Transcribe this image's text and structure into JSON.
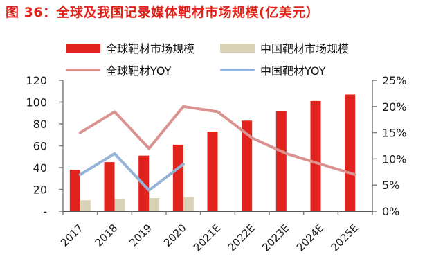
{
  "title": "图 36：全球及我国记录媒体靶材市场规模(亿美元）",
  "colors": {
    "title_red": "#e2231a",
    "bar_red": "#e0231c",
    "bar_tan": "#d9d2b6",
    "line_pink": "#d9928f",
    "line_blue": "#95b3d7",
    "axis_gray": "#7f7f7f",
    "axis_bottom_gray": "#595959",
    "text_dark": "#1a1a1a"
  },
  "legend": {
    "items": [
      {
        "label": "全球靶材市场规模",
        "swatch": "bar",
        "color": "#e0231c"
      },
      {
        "label": "中国靶材市场规模",
        "swatch": "bar",
        "color": "#d9d2b6"
      },
      {
        "label": "全球靶材YOY",
        "swatch": "line",
        "color": "#d9928f"
      },
      {
        "label": "中国靶材YOY",
        "swatch": "line",
        "color": "#95b3d7"
      }
    ]
  },
  "chart_data": {
    "type": "combo",
    "title": "图 36：全球及我国记录媒体靶材市场规模(亿美元）",
    "categories": [
      "2017",
      "2018",
      "2019",
      "2020",
      "2021E",
      "2022E",
      "2023E",
      "2024E",
      "2025E"
    ],
    "series": [
      {
        "name": "全球靶材市场规模",
        "type": "bar",
        "axis": "left",
        "color": "#e0231c",
        "values": [
          38,
          45,
          51,
          61,
          73,
          83,
          92,
          101,
          107
        ]
      },
      {
        "name": "中国靶材市场规模",
        "type": "bar",
        "axis": "left",
        "color": "#d9d2b6",
        "values": [
          10,
          11,
          12,
          13,
          null,
          null,
          null,
          null,
          null
        ]
      },
      {
        "name": "全球靶材YOY",
        "type": "line",
        "axis": "right",
        "color": "#d9928f",
        "values": [
          15,
          19,
          12,
          20,
          19,
          14,
          11,
          9,
          7
        ]
      },
      {
        "name": "中国靶材YOY",
        "type": "line",
        "axis": "right",
        "color": "#95b3d7",
        "values": [
          7,
          11,
          4,
          9,
          null,
          null,
          null,
          null,
          null
        ]
      }
    ],
    "left_axis": {
      "min": 0,
      "max": 120,
      "tick_step": 20,
      "tick_labels": [
        "-",
        "20",
        "40",
        "60",
        "80",
        "100",
        "120"
      ]
    },
    "right_axis": {
      "min": 0,
      "max": 25,
      "tick_step": 5,
      "tick_labels": [
        "0%",
        "5%",
        "10%",
        "15%",
        "20%",
        "25%"
      ]
    },
    "grid": false,
    "legend_position": "top"
  }
}
